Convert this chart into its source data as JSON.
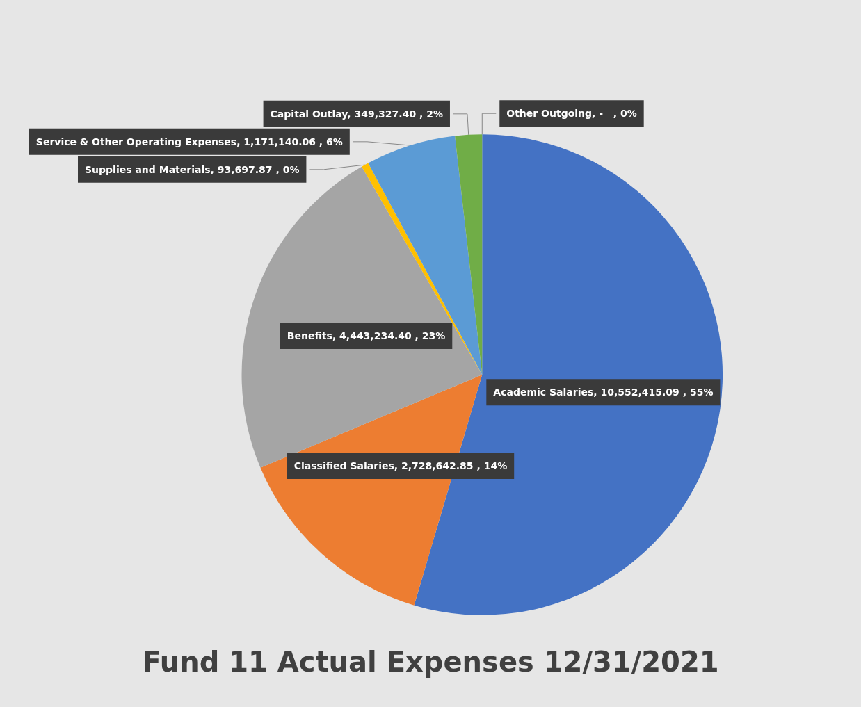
{
  "chart_data": {
    "type": "pie",
    "title": "Fund 11 Actual Expenses 12/31/2021",
    "categories": [
      "Academic Salaries",
      "Classified Salaries",
      "Benefits",
      "Supplies and Materials",
      "Service & Other Operating Expenses",
      "Capital Outlay",
      "Other Outgoing"
    ],
    "values": [
      10552415.09,
      2728642.85,
      4443234.4,
      93697.87,
      1171140.06,
      349327.4,
      0
    ],
    "colors": [
      "#4472c4",
      "#ed7d31",
      "#a5a5a5",
      "#ffc000",
      "#5b9bd5",
      "#70ad47",
      "#264478"
    ],
    "value_labels": [
      ", 10,552,415.09 , 55%",
      ", 2,728,642.85 , 14%",
      ", 4,443,234.40 , 23%",
      ", 93,697.87 , 0%",
      ", 1,171,140.06 , 6%",
      ", 349,327.40 , 2%",
      ", -   , 0%"
    ],
    "legend": false
  }
}
